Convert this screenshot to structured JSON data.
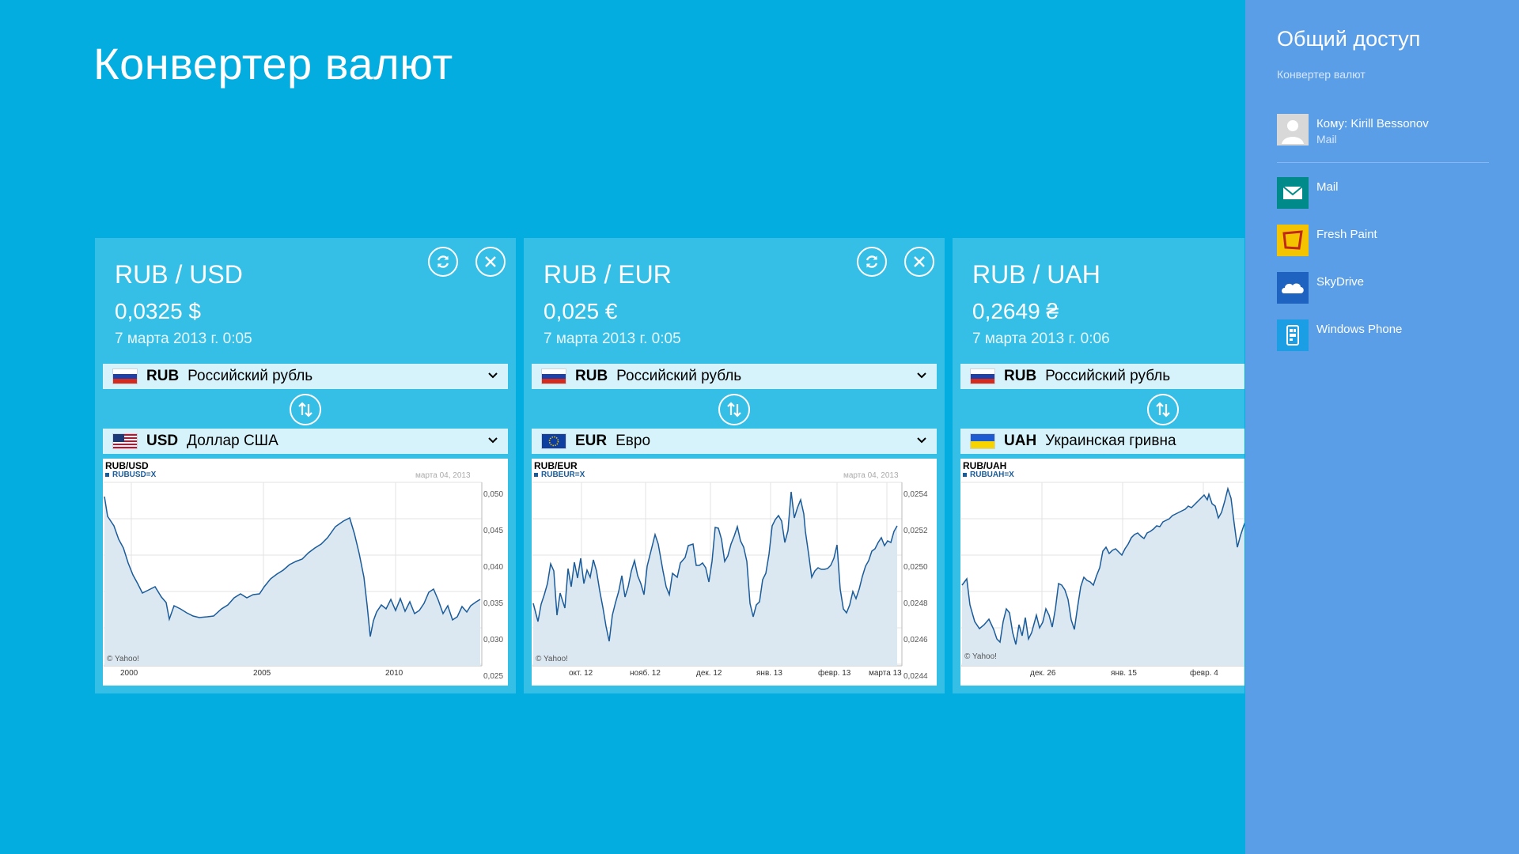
{
  "app": {
    "title": "Конвертер валют"
  },
  "cards": [
    {
      "pair": "RUB / USD",
      "rate": "0,0325 $",
      "date": "7 марта 2013 г. 0:05",
      "from": {
        "code": "RUB",
        "name": "Российский рубль",
        "flag": "ru"
      },
      "to": {
        "code": "USD",
        "name": "Доллар США",
        "flag": "us"
      },
      "chart": {
        "title": "RUB/USD",
        "symbol": "RUBUSD=X",
        "date_label": "марта 04, 2013",
        "credit": "© Yahoo!",
        "y_ticks": [
          "0,050",
          "0,045",
          "0,040",
          "0,035",
          "0,030",
          "0,025"
        ],
        "x_ticks": [
          "2000",
          "2005",
          "2010"
        ]
      }
    },
    {
      "pair": "RUB / EUR",
      "rate": "0,025 €",
      "date": "7 марта 2013 г. 0:05",
      "from": {
        "code": "RUB",
        "name": "Российский рубль",
        "flag": "ru"
      },
      "to": {
        "code": "EUR",
        "name": "Евро",
        "flag": "eu"
      },
      "chart": {
        "title": "RUB/EUR",
        "symbol": "RUBEUR=X",
        "date_label": "марта 04, 2013",
        "credit": "© Yahoo!",
        "y_ticks": [
          "0,0254",
          "0,0252",
          "0,0250",
          "0,0248",
          "0,0246",
          "0,0244"
        ],
        "x_ticks": [
          "окт. 12",
          "нояб. 12",
          "дек. 12",
          "янв. 13",
          "февр. 13",
          "марта 13"
        ]
      }
    },
    {
      "pair": "RUB / UAH",
      "rate": "0,2649 ₴",
      "date": "7 марта 2013 г. 0:06",
      "from": {
        "code": "RUB",
        "name": "Российский рубль",
        "flag": "ru"
      },
      "to": {
        "code": "UAH",
        "name": "Украинская гривна",
        "flag": "ua"
      },
      "chart": {
        "title": "RUB/UAH",
        "symbol": "RUBUAH=X",
        "credit": "© Yahoo!",
        "x_ticks": [
          "дек. 26",
          "янв. 15",
          "февр. 4"
        ]
      }
    }
  ],
  "share": {
    "title": "Общий доступ",
    "subtitle": "Конвертер валют",
    "contact": {
      "label": "Кому: Kirill Bessonov",
      "app": "Mail"
    },
    "apps": [
      {
        "label": "Mail",
        "icon": "mail-icon",
        "color": "#008a8a"
      },
      {
        "label": "Fresh Paint",
        "icon": "fresh-paint-icon",
        "color": "#f5c400"
      },
      {
        "label": "SkyDrive",
        "icon": "skydrive-icon",
        "color": "#1e63bf"
      },
      {
        "label": "Windows Phone",
        "icon": "windows-phone-icon",
        "color": "#1b9ee3"
      }
    ]
  }
}
